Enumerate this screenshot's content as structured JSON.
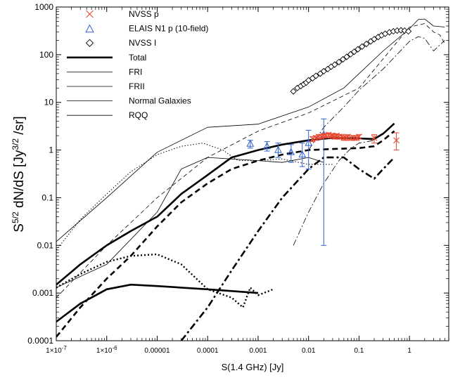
{
  "chart_data": {
    "type": "line",
    "x_scale": "log",
    "y_scale": "log",
    "xlabel": "S(1.4 GHz) [Jy]",
    "ylabel": "S5/2 dN/dS [Jy3/2 /sr]",
    "ylabel_parts": {
      "s": "S",
      "s_exp": "5/2",
      "mid": " dN/dS  [Jy",
      "jy_exp": "3/2",
      "end": "  /sr]"
    },
    "xlim": [
      1e-07,
      6
    ],
    "ylim": [
      0.0001,
      1000
    ],
    "x_ticks": [
      {
        "value": 1e-07,
        "label": "1×10-7"
      },
      {
        "value": 1e-06,
        "label": "1×10-6"
      },
      {
        "value": 1e-05,
        "label": "0.00001"
      },
      {
        "value": 0.0001,
        "label": "0.0001"
      },
      {
        "value": 0.001,
        "label": "0.001"
      },
      {
        "value": 0.01,
        "label": "0.01"
      },
      {
        "value": 0.1,
        "label": "0.1"
      },
      {
        "value": 1,
        "label": "1"
      }
    ],
    "y_ticks": [
      {
        "value": 0.0001,
        "label": "0.0001"
      },
      {
        "value": 0.001,
        "label": "0.001"
      },
      {
        "value": 0.01,
        "label": "0.01"
      },
      {
        "value": 0.1,
        "label": "0.1"
      },
      {
        "value": 1,
        "label": "1"
      },
      {
        "value": 10,
        "label": "10"
      },
      {
        "value": 100,
        "label": "100"
      },
      {
        "value": 1000,
        "label": "1000"
      }
    ],
    "legend": [
      {
        "label": "NVSS p",
        "marker": "x",
        "color": "#e8462e"
      },
      {
        "label": "ELAIS N1 p (10-field)",
        "marker": "triangle",
        "color": "#2f5fd0"
      },
      {
        "label": "NVSS I",
        "marker": "diamond",
        "color": "#000000"
      },
      {
        "label": "Total",
        "line": "solid-thick"
      },
      {
        "label": "FRI",
        "line": "dashed"
      },
      {
        "label": "FRII",
        "line": "dashdot"
      },
      {
        "label": "Normal Galaxies",
        "line": "dotted"
      },
      {
        "label": "RQQ",
        "line": "solid-thin"
      }
    ],
    "series": [
      {
        "name": "Total (I)",
        "style": "solid-thin",
        "x": [
          1e-07,
          1e-06,
          1e-05,
          0.0001,
          0.001,
          0.01,
          0.05,
          0.1,
          0.3,
          1,
          1.5,
          2,
          3,
          5
        ],
        "y": [
          0.012,
          0.1,
          0.9,
          3,
          3.5,
          8,
          20,
          40,
          120,
          350,
          550,
          560,
          400,
          380
        ]
      },
      {
        "name": "FRI (I)",
        "style": "dashed-thin",
        "x": [
          1e-07,
          1e-06,
          1e-05,
          0.0001,
          0.001,
          0.01,
          0.1,
          1,
          1.5,
          2,
          3,
          4,
          5
        ],
        "y": [
          0.0008,
          0.01,
          0.1,
          0.7,
          2.5,
          6,
          20,
          380,
          420,
          450,
          300,
          260,
          170
        ]
      },
      {
        "name": "FRII (I)",
        "style": "dashdot-thin",
        "x": [
          0.01,
          0.02,
          0.05,
          0.1,
          0.3,
          1,
          1.5,
          2,
          3,
          5
        ],
        "y": [
          1,
          3,
          8,
          18,
          50,
          190,
          240,
          220,
          120,
          200
        ]
      },
      {
        "name": "Normal Galaxies (I)",
        "style": "dotted-thin",
        "x": [
          1e-07,
          3e-07,
          1e-06,
          3e-06,
          1e-05,
          3e-05,
          8e-05,
          0.0002,
          0.0004,
          0.001,
          0.003,
          0.01,
          0.03
        ],
        "y": [
          0.008,
          0.035,
          0.12,
          0.35,
          0.8,
          1.2,
          1.4,
          1.0,
          0.6,
          0.6,
          0.65,
          0.5,
          0.5
        ]
      },
      {
        "name": "RQQ (I)",
        "style": "solid-thin",
        "x": [
          1e-07,
          1e-06,
          1e-05,
          3e-05,
          0.0001,
          0.0003,
          0.001,
          0.003,
          0.01,
          0.02
        ],
        "y": [
          0.0013,
          0.004,
          0.05,
          0.4,
          0.7,
          0.65,
          0.6,
          0.55,
          0.7,
          0.55
        ]
      },
      {
        "name": "FRII (I) steep",
        "style": "dashdot-thin",
        "x": [
          0.005,
          0.01,
          0.02,
          0.04,
          0.07,
          0.1,
          0.2
        ],
        "y": [
          0.01,
          0.05,
          0.2,
          0.6,
          1.1,
          1.4,
          1.6
        ]
      },
      {
        "name": "Total (p)",
        "style": "solid-thick",
        "x": [
          1e-07,
          3e-07,
          1e-06,
          3e-06,
          1e-05,
          3e-05,
          0.0001,
          0.0003,
          0.001,
          0.003,
          0.01,
          0.03,
          0.1,
          0.2,
          0.3,
          0.5
        ],
        "y": [
          0.0015,
          0.004,
          0.01,
          0.02,
          0.04,
          0.12,
          0.3,
          0.7,
          1.0,
          1.3,
          1.6,
          1.8,
          1.75,
          1.7,
          2.2,
          3.6
        ]
      },
      {
        "name": "FRI (p)",
        "style": "dashed-thick",
        "x": [
          1e-07,
          3e-07,
          1e-06,
          3e-06,
          1e-05,
          3e-05,
          0.0001,
          0.0003,
          0.001,
          0.003,
          0.01,
          0.03,
          0.1,
          0.2,
          0.3,
          0.5
        ],
        "y": [
          0.00012,
          0.0005,
          0.002,
          0.006,
          0.025,
          0.08,
          0.2,
          0.4,
          0.6,
          0.8,
          1.0,
          1.05,
          1.1,
          1.2,
          1.6,
          2.5
        ]
      },
      {
        "name": "FRII (p)",
        "style": "dashdot-thick",
        "x": [
          3e-05,
          0.0001,
          0.0003,
          0.001,
          0.003,
          0.01,
          0.02,
          0.05,
          0.1,
          0.2,
          0.3,
          0.5
        ],
        "y": [
          0.0001,
          0.0005,
          0.003,
          0.02,
          0.1,
          0.4,
          0.7,
          0.7,
          0.4,
          0.25,
          0.4,
          0.7
        ]
      },
      {
        "name": "Normal Galaxies (p)",
        "style": "dotted-thick",
        "x": [
          1e-07,
          3e-07,
          1e-06,
          3e-06,
          1e-05,
          3e-05,
          0.0001,
          0.0003,
          0.0005,
          0.0007,
          0.001,
          0.002
        ],
        "y": [
          0.0013,
          0.0025,
          0.0045,
          0.006,
          0.0065,
          0.004,
          0.0012,
          0.0008,
          0.0005,
          0.0013,
          0.0009,
          0.0012
        ]
      },
      {
        "name": "RQQ (p)",
        "style": "solid-thick",
        "x": [
          1e-07,
          3e-07,
          1e-06,
          3e-06,
          1e-05,
          3e-05,
          0.0001,
          0.0003,
          0.001
        ],
        "y": [
          0.00025,
          0.0006,
          0.0012,
          0.0015,
          0.0014,
          0.0013,
          0.0012,
          0.0011,
          0.001
        ]
      }
    ],
    "nvss_i": {
      "x": [
        0.005,
        0.006,
        0.007,
        0.008,
        0.009,
        0.01,
        0.012,
        0.014,
        0.017,
        0.02,
        0.024,
        0.028,
        0.033,
        0.04,
        0.048,
        0.057,
        0.068,
        0.08,
        0.095,
        0.115,
        0.14,
        0.17,
        0.2,
        0.24,
        0.28,
        0.33,
        0.4,
        0.48,
        0.57,
        0.68,
        0.8,
        0.95
      ],
      "y": [
        17,
        20,
        22,
        24,
        26,
        29,
        32,
        36,
        40,
        45,
        50,
        56,
        62,
        70,
        80,
        90,
        102,
        115,
        130,
        148,
        168,
        190,
        212,
        235,
        255,
        275,
        295,
        310,
        320,
        325,
        320,
        310
      ]
    },
    "nvss_p": {
      "x": [
        0.012,
        0.014,
        0.016,
        0.018,
        0.02,
        0.022,
        0.025,
        0.028,
        0.03,
        0.033,
        0.036,
        0.04,
        0.045,
        0.05,
        0.055,
        0.06,
        0.07,
        0.08,
        0.09,
        0.1,
        0.2,
        0.55
      ],
      "y": [
        1.7,
        1.8,
        1.9,
        1.9,
        2.0,
        2.0,
        2.1,
        2.0,
        2.0,
        1.9,
        2.0,
        1.9,
        1.9,
        1.8,
        1.8,
        1.9,
        1.8,
        1.8,
        1.8,
        1.9,
        1.8,
        1.6
      ],
      "yerr_low": [
        1.5,
        1.6,
        1.7,
        1.7,
        1.8,
        1.8,
        1.9,
        1.8,
        1.8,
        1.7,
        1.8,
        1.7,
        1.7,
        1.6,
        1.6,
        1.7,
        1.6,
        1.6,
        1.6,
        1.7,
        1.4,
        1.0
      ],
      "yerr_high": [
        1.9,
        2.0,
        2.1,
        2.1,
        2.2,
        2.2,
        2.3,
        2.2,
        2.2,
        2.1,
        2.2,
        2.1,
        2.1,
        2.0,
        2.0,
        2.1,
        2.0,
        2.0,
        2.0,
        2.1,
        2.1,
        2.3
      ]
    },
    "elais_p": {
      "x": [
        0.0007,
        0.0015,
        0.0025,
        0.0045,
        0.0075,
        0.01,
        0.02
      ],
      "y": [
        1.35,
        1.2,
        1.0,
        0.9,
        0.8,
        1.4,
        2.1
      ],
      "yerr_low": [
        1.1,
        0.95,
        0.7,
        0.55,
        0.45,
        0.4,
        0.01
      ],
      "yerr_high": [
        1.6,
        1.5,
        1.4,
        1.3,
        1.4,
        2.6,
        4.5
      ]
    }
  }
}
